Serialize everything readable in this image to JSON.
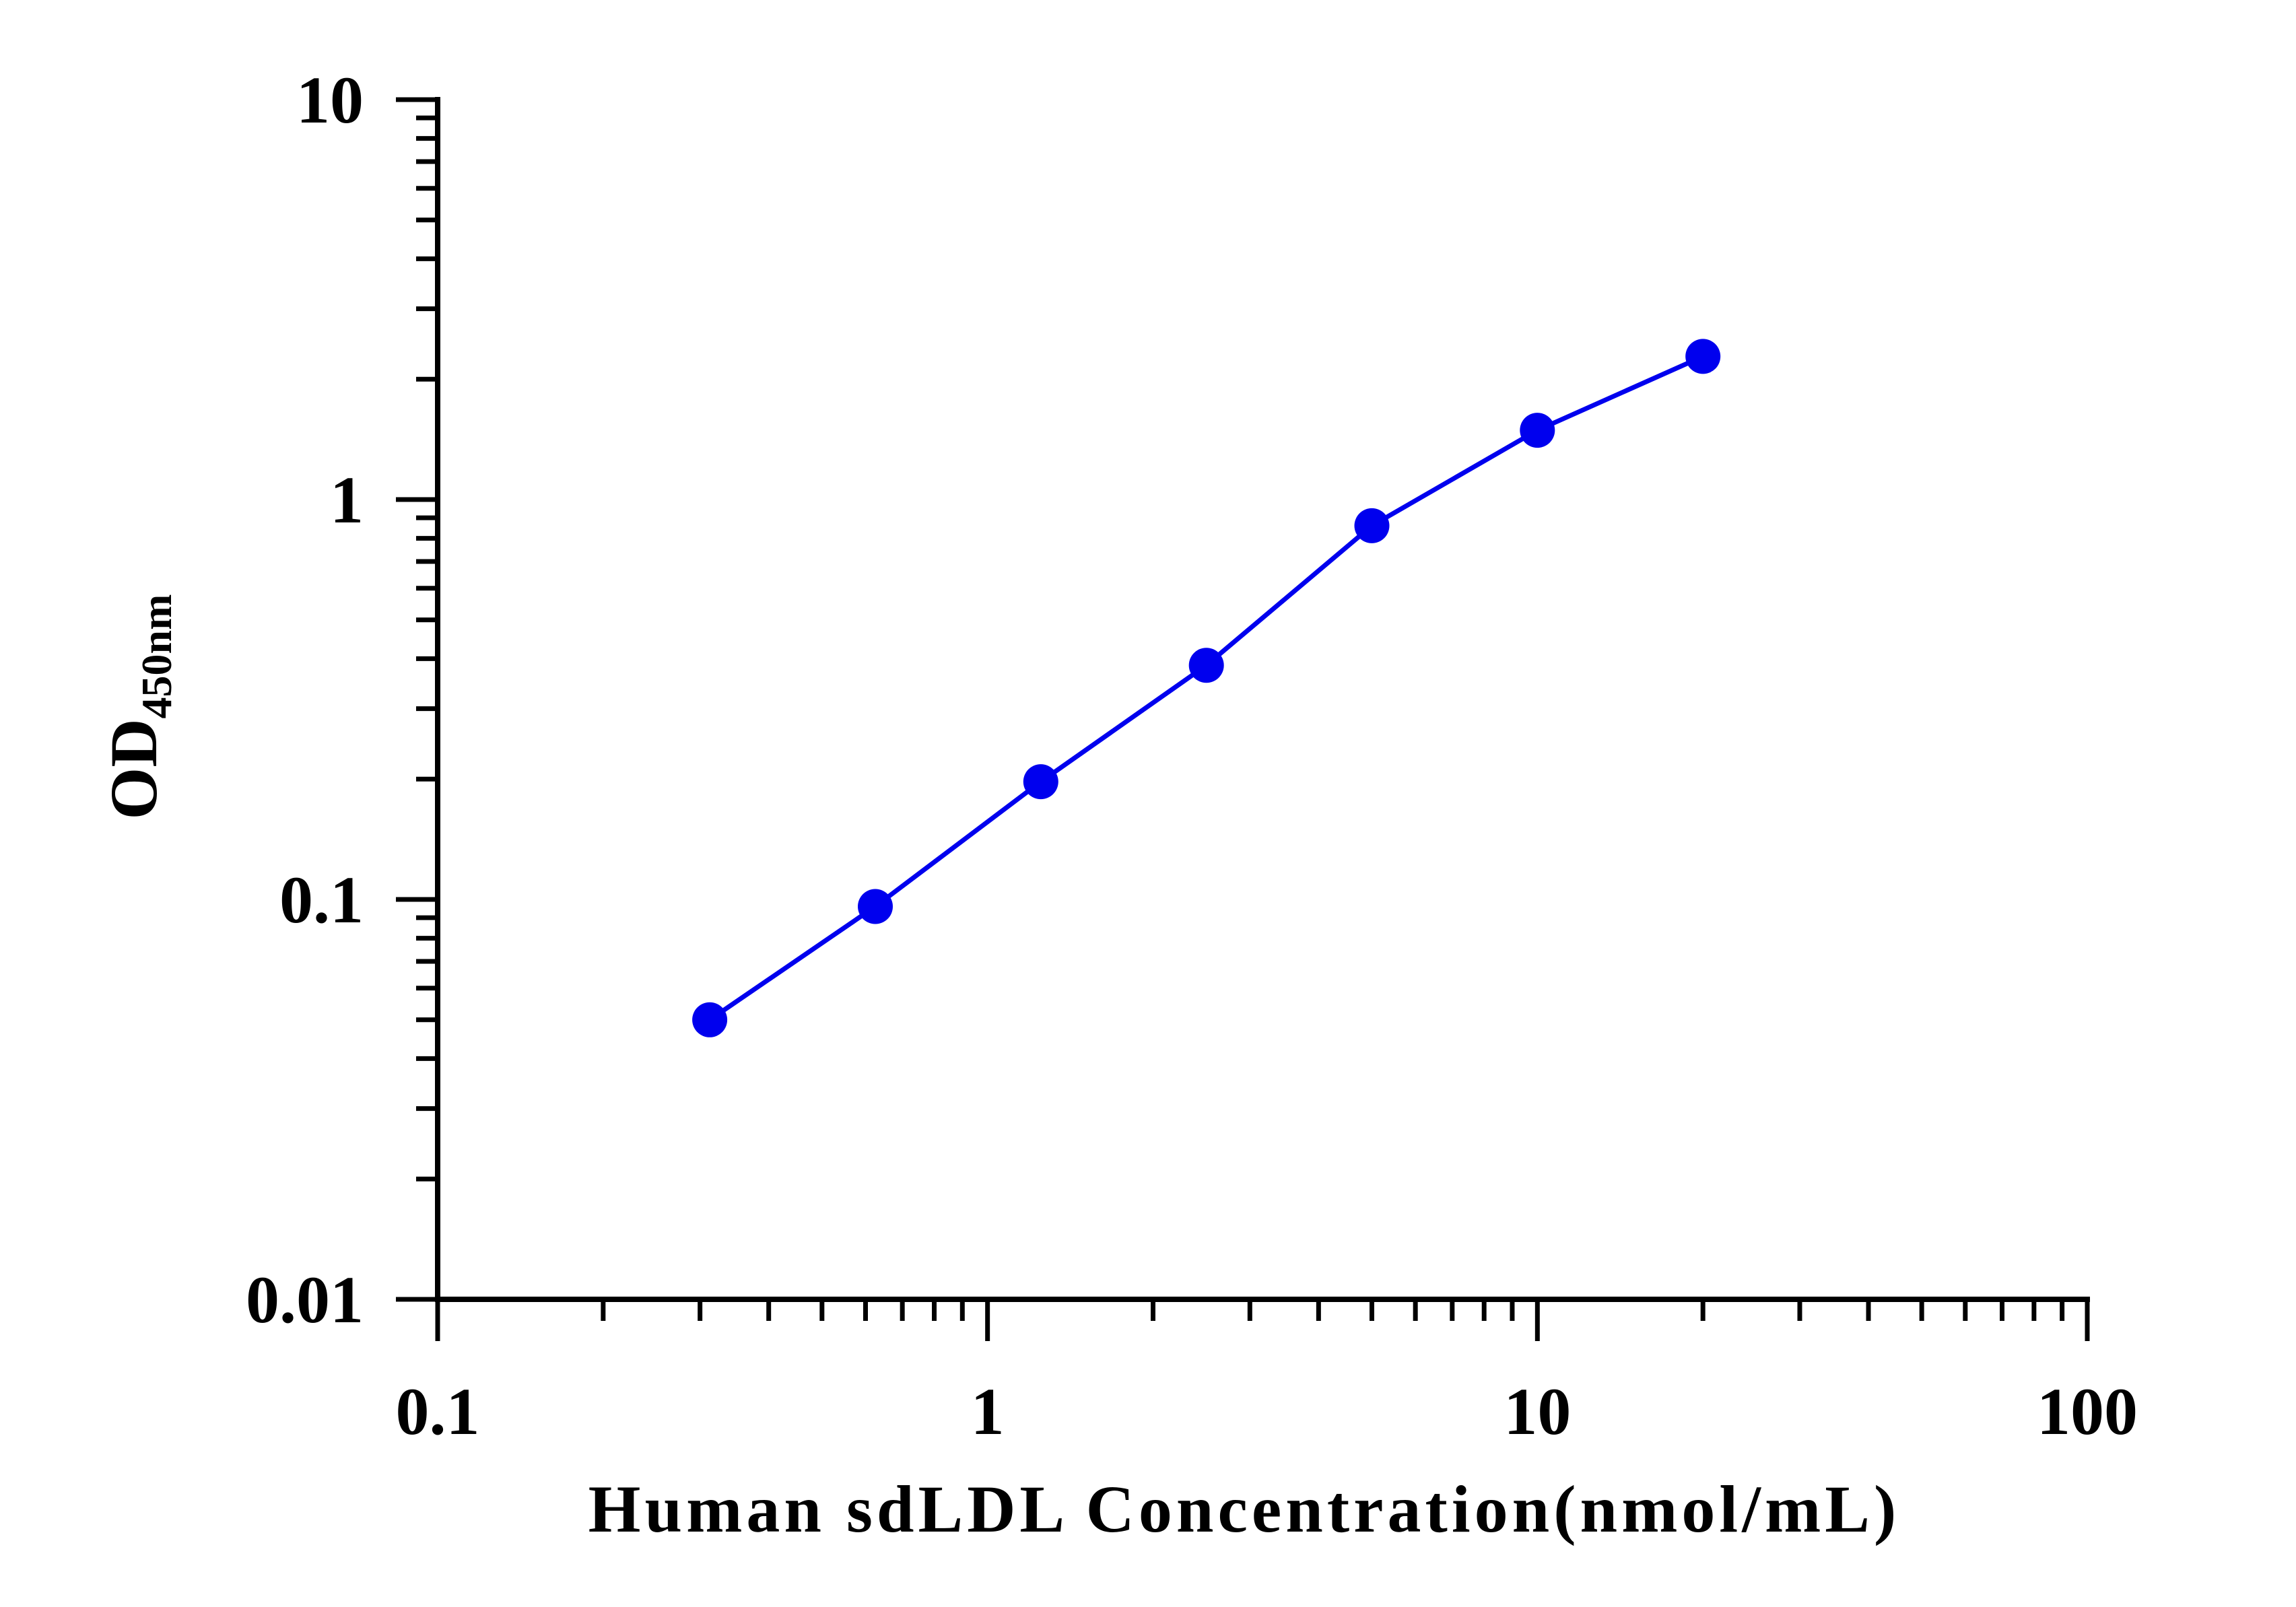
{
  "chart_data": {
    "type": "line",
    "title": "",
    "xlabel": "Human sdLDL Concentration(nmol/mL)",
    "ylabel_main": "OD",
    "ylabel_sub": "450nm",
    "x_scale": "log",
    "y_scale": "log",
    "xlim": [
      0.1,
      100
    ],
    "ylim": [
      0.01,
      10
    ],
    "x_tick_labels": [
      "0.1",
      "1",
      "10",
      "100"
    ],
    "y_tick_labels": [
      "0.01",
      "0.1",
      "1",
      "10"
    ],
    "grid": false,
    "legend": "none",
    "series": [
      {
        "color": "#0000ee",
        "marker": "circle",
        "x": [
          0.3125,
          0.625,
          1.25,
          2.5,
          5,
          10,
          20
        ],
        "y": [
          0.05,
          0.096,
          0.197,
          0.385,
          0.86,
          1.49,
          2.28
        ]
      }
    ]
  }
}
